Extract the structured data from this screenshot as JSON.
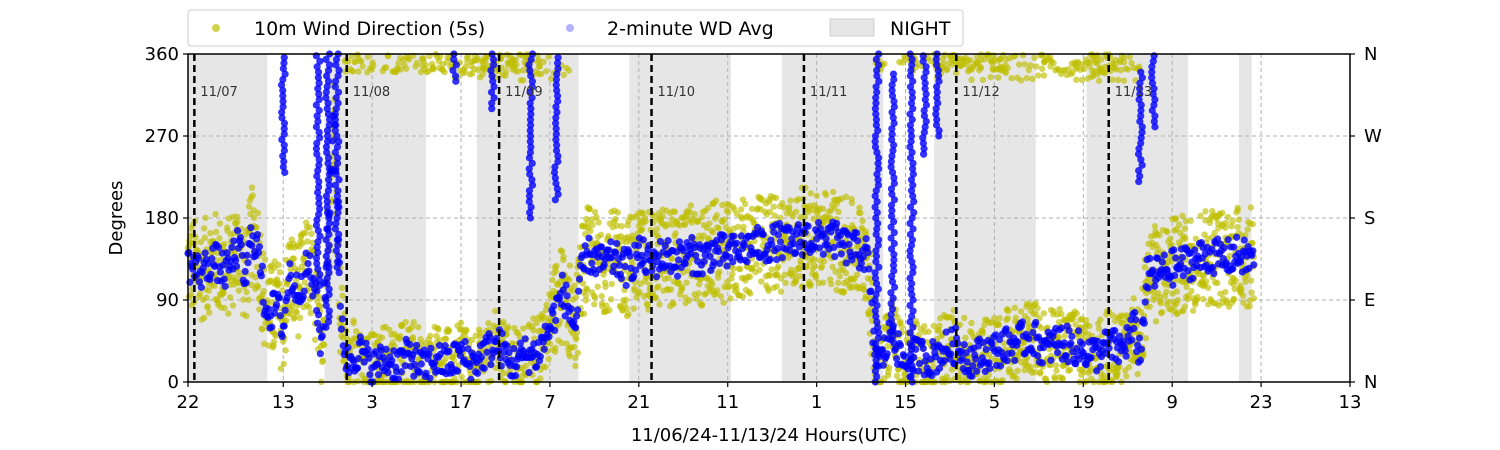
{
  "chart_data": {
    "type": "scatter",
    "xlabel": "11/06/24-11/13/24  Hours(UTC)",
    "ylabel": "Degrees",
    "x_range_hours": [
      0,
      183
    ],
    "ylim": [
      0,
      360
    ],
    "yticks": [
      0,
      90,
      180,
      270,
      360
    ],
    "right_ticks": [
      {
        "value": 0,
        "label": "N"
      },
      {
        "value": 90,
        "label": "E"
      },
      {
        "value": 180,
        "label": "S"
      },
      {
        "value": 270,
        "label": "W"
      },
      {
        "value": 360,
        "label": "N"
      }
    ],
    "xticks": [
      {
        "hour": 0,
        "label": "22"
      },
      {
        "hour": 15,
        "label": "13"
      },
      {
        "hour": 29,
        "label": "3"
      },
      {
        "hour": 43,
        "label": "17"
      },
      {
        "hour": 57,
        "label": "7"
      },
      {
        "hour": 71,
        "label": "21"
      },
      {
        "hour": 85,
        "label": "11"
      },
      {
        "hour": 99,
        "label": "1"
      },
      {
        "hour": 113,
        "label": "15"
      },
      {
        "hour": 127,
        "label": "5"
      },
      {
        "hour": 141,
        "label": "19"
      },
      {
        "hour": 155,
        "label": "9"
      },
      {
        "hour": 169,
        "label": "23"
      },
      {
        "hour": 183,
        "label": "13"
      }
    ],
    "grid": true,
    "legend_placement": "top-center-outside",
    "legend": {
      "wd5s": "10m Wind Direction (5s)",
      "wd2m": "2-minute WD Avg",
      "night": "NIGHT"
    },
    "colors": {
      "wd5s": "#bfbf00",
      "wd2m": "#0000ff",
      "night": "#e6e6e6",
      "midnight_line": "#000000"
    },
    "day_markers": [
      {
        "hour": 1,
        "label": "11/07"
      },
      {
        "hour": 25,
        "label": "11/08"
      },
      {
        "hour": 49,
        "label": "11/09"
      },
      {
        "hour": 73,
        "label": "11/10"
      },
      {
        "hour": 97,
        "label": "11/11"
      },
      {
        "hour": 121,
        "label": "11/12"
      },
      {
        "hour": 145,
        "label": "11/13"
      }
    ],
    "night_bands": [
      {
        "start": 0,
        "end": 12.5
      },
      {
        "start": 21.5,
        "end": 37.5
      },
      {
        "start": 45.5,
        "end": 61.5
      },
      {
        "start": 69.5,
        "end": 85.5
      },
      {
        "start": 93.5,
        "end": 109.5
      },
      {
        "start": 117.5,
        "end": 133.5
      },
      {
        "start": 141.5,
        "end": 157.5
      },
      {
        "start": 165.5,
        "end": 167.5
      }
    ],
    "series_profile_2min": [
      [
        0,
        130
      ],
      [
        2,
        120
      ],
      [
        4,
        135
      ],
      [
        6,
        120
      ],
      [
        8,
        150
      ],
      [
        9,
        110
      ],
      [
        10,
        160
      ],
      [
        11,
        150
      ],
      [
        12,
        90
      ],
      [
        13,
        75
      ],
      [
        14,
        85
      ],
      [
        15,
        60
      ],
      [
        16,
        120
      ],
      [
        17,
        100
      ],
      [
        18,
        110
      ],
      [
        19,
        130
      ],
      [
        20,
        95
      ],
      [
        21,
        40
      ],
      [
        22,
        150
      ],
      [
        23,
        300
      ],
      [
        24,
        80
      ],
      [
        25,
        20
      ],
      [
        27,
        35
      ],
      [
        29,
        15
      ],
      [
        31,
        25
      ],
      [
        33,
        20
      ],
      [
        35,
        30
      ],
      [
        37,
        15
      ],
      [
        39,
        25
      ],
      [
        41,
        20
      ],
      [
        43,
        30
      ],
      [
        45,
        20
      ],
      [
        47,
        35
      ],
      [
        49,
        40
      ],
      [
        51,
        20
      ],
      [
        53,
        30
      ],
      [
        55,
        30
      ],
      [
        57,
        60
      ],
      [
        59,
        100
      ],
      [
        61,
        60
      ],
      [
        62,
        120
      ],
      [
        63,
        140
      ],
      [
        65,
        130
      ],
      [
        67,
        135
      ],
      [
        69,
        125
      ],
      [
        71,
        140
      ],
      [
        73,
        130
      ],
      [
        75,
        140
      ],
      [
        77,
        135
      ],
      [
        79,
        140
      ],
      [
        81,
        135
      ],
      [
        83,
        145
      ],
      [
        85,
        140
      ],
      [
        87,
        145
      ],
      [
        89,
        150
      ],
      [
        91,
        150
      ],
      [
        93,
        155
      ],
      [
        95,
        150
      ],
      [
        97,
        160
      ],
      [
        99,
        155
      ],
      [
        101,
        160
      ],
      [
        103,
        150
      ],
      [
        105,
        145
      ],
      [
        107,
        140
      ],
      [
        108,
        40
      ],
      [
        109,
        20
      ],
      [
        111,
        60
      ],
      [
        112,
        30
      ],
      [
        113,
        20
      ],
      [
        115,
        30
      ],
      [
        117,
        25
      ],
      [
        119,
        35
      ],
      [
        121,
        40
      ],
      [
        123,
        25
      ],
      [
        125,
        30
      ],
      [
        127,
        35
      ],
      [
        129,
        40
      ],
      [
        131,
        45
      ],
      [
        133,
        50
      ],
      [
        135,
        35
      ],
      [
        137,
        45
      ],
      [
        139,
        40
      ],
      [
        141,
        35
      ],
      [
        143,
        30
      ],
      [
        145,
        40
      ],
      [
        147,
        35
      ],
      [
        149,
        60
      ],
      [
        150,
        30
      ],
      [
        151,
        115
      ],
      [
        153,
        120
      ],
      [
        155,
        125
      ],
      [
        157,
        130
      ],
      [
        159,
        135
      ],
      [
        161,
        140
      ],
      [
        163,
        135
      ],
      [
        165,
        140
      ],
      [
        167,
        135
      ],
      [
        168,
        140
      ]
    ],
    "excursions_2min": [
      {
        "hour": 15,
        "low": 230,
        "high": 360
      },
      {
        "hour": 20.5,
        "low": 100,
        "high": 360
      },
      {
        "hour": 22,
        "low": 60,
        "high": 360
      },
      {
        "hour": 23.5,
        "low": 120,
        "high": 360
      },
      {
        "hour": 42,
        "low": 330,
        "high": 360
      },
      {
        "hour": 48,
        "low": 300,
        "high": 360
      },
      {
        "hour": 54,
        "low": 180,
        "high": 360
      },
      {
        "hour": 58,
        "low": 200,
        "high": 360
      },
      {
        "hour": 108.5,
        "low": 0,
        "high": 360
      },
      {
        "hour": 111,
        "low": 50,
        "high": 340
      },
      {
        "hour": 114,
        "low": 0,
        "high": 360
      },
      {
        "hour": 116,
        "low": 250,
        "high": 360
      },
      {
        "hour": 118,
        "low": 270,
        "high": 360
      },
      {
        "hour": 150,
        "low": 220,
        "high": 340
      },
      {
        "hour": 152,
        "low": 280,
        "high": 360
      }
    ]
  }
}
